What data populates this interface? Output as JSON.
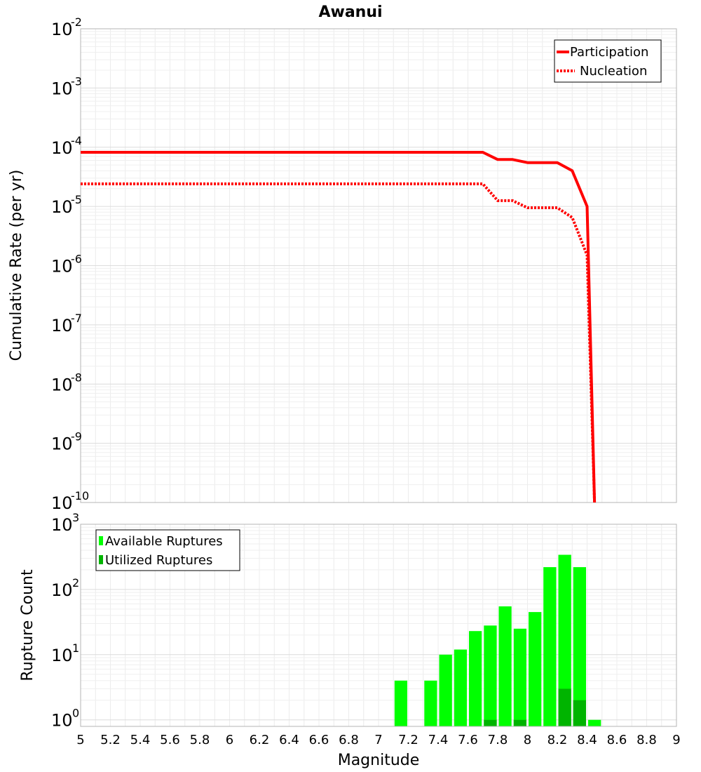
{
  "chart_data": [
    {
      "type": "line",
      "title": "Awanui",
      "xlabel": "Magnitude",
      "ylabel": "Cumulative Rate (per yr)",
      "yscale": "log",
      "xlim": [
        5,
        9
      ],
      "ylim_exp": [
        -10,
        -2
      ],
      "ytick_exponents": [
        "-2",
        "-3",
        "-4",
        "-5",
        "-6",
        "-7",
        "-8",
        "-9",
        "-10"
      ],
      "grid": true,
      "legend_position": "top-right",
      "series": [
        {
          "name": "Participation",
          "color": "#ff0000",
          "style": "solid",
          "points": [
            [
              5.0,
              8.2e-05
            ],
            [
              7.7,
              8.2e-05
            ],
            [
              7.8,
              6.2e-05
            ],
            [
              7.9,
              6.2e-05
            ],
            [
              8.0,
              5.5e-05
            ],
            [
              8.2,
              5.5e-05
            ],
            [
              8.3,
              4e-05
            ],
            [
              8.4,
              1e-05
            ],
            [
              8.45,
              1e-10
            ]
          ]
        },
        {
          "name": "Nucleation",
          "color": "#ff0000",
          "style": "dotted",
          "points": [
            [
              5.0,
              2.4e-05
            ],
            [
              7.7,
              2.4e-05
            ],
            [
              7.8,
              1.25e-05
            ],
            [
              7.9,
              1.25e-05
            ],
            [
              8.0,
              9.5e-06
            ],
            [
              8.2,
              9.5e-06
            ],
            [
              8.3,
              6.5e-06
            ],
            [
              8.4,
              1.5e-06
            ],
            [
              8.45,
              1e-10
            ]
          ]
        }
      ]
    },
    {
      "type": "bar",
      "xlabel": "Magnitude",
      "ylabel": "Rupture Count",
      "yscale": "log",
      "ylim_exp": [
        -0.1,
        3
      ],
      "ytick_exponents": [
        "0",
        "1",
        "2",
        "3"
      ],
      "xticks": [
        "5",
        "5.2",
        "5.4",
        "5.6",
        "5.8",
        "6",
        "6.2",
        "6.4",
        "6.6",
        "6.8",
        "7",
        "7.2",
        "7.4",
        "7.6",
        "7.8",
        "8",
        "8.2",
        "8.4",
        "8.6",
        "8.8",
        "9"
      ],
      "grid": true,
      "legend_position": "top-left",
      "bin_width": 0.1,
      "series": [
        {
          "name": "Available Ruptures",
          "color": "#00ff00",
          "bins": [
            [
              7.15,
              4
            ],
            [
              7.35,
              4
            ],
            [
              7.45,
              10
            ],
            [
              7.55,
              12
            ],
            [
              7.65,
              23
            ],
            [
              7.75,
              28
            ],
            [
              7.85,
              55
            ],
            [
              7.95,
              25
            ],
            [
              8.05,
              45
            ],
            [
              8.15,
              220
            ],
            [
              8.25,
              340
            ],
            [
              8.35,
              220
            ],
            [
              8.45,
              1
            ]
          ]
        },
        {
          "name": "Utilized Ruptures",
          "color": "#00b400",
          "bins": [
            [
              7.75,
              1
            ],
            [
              7.95,
              1
            ],
            [
              8.25,
              3
            ],
            [
              8.35,
              2
            ]
          ]
        }
      ]
    }
  ]
}
